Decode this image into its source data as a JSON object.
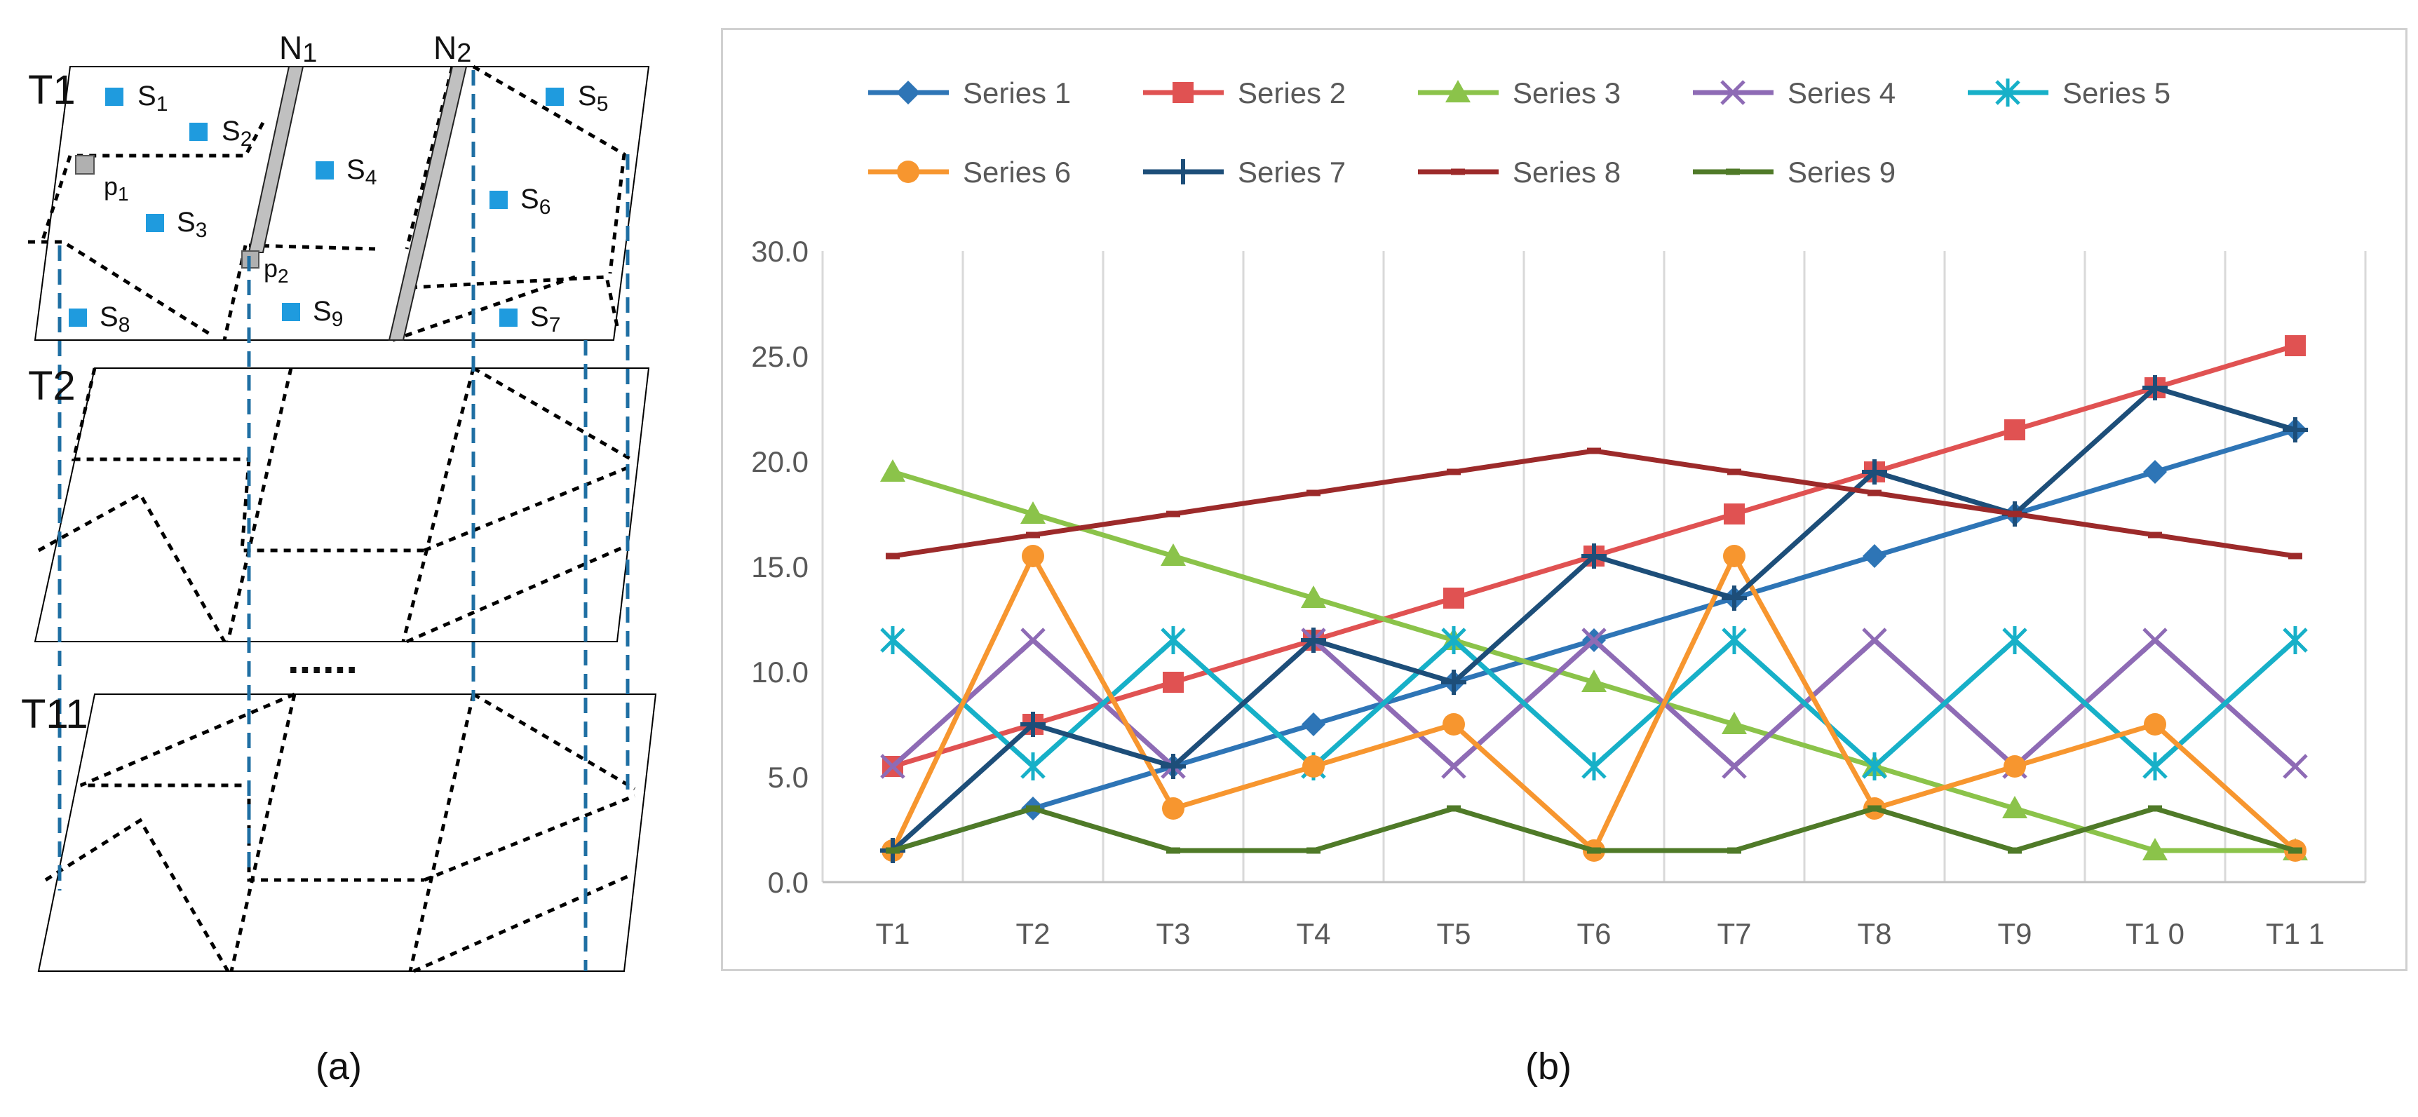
{
  "diagram": {
    "time_labels": [
      "T1",
      "T2",
      "T11"
    ],
    "ellipsis": "......",
    "network_labels": [
      "N",
      "N"
    ],
    "network_subscripts": [
      "1",
      "2"
    ],
    "sensors": [
      {
        "main": "S",
        "sub": "1"
      },
      {
        "main": "S",
        "sub": "2"
      },
      {
        "main": "S",
        "sub": "3"
      },
      {
        "main": "S",
        "sub": "4"
      },
      {
        "main": "S",
        "sub": "5"
      },
      {
        "main": "S",
        "sub": "6"
      },
      {
        "main": "S",
        "sub": "7"
      },
      {
        "main": "S",
        "sub": "8"
      },
      {
        "main": "S",
        "sub": "9"
      }
    ],
    "points": [
      {
        "main": "p",
        "sub": "1"
      },
      {
        "main": "p",
        "sub": "2"
      }
    ],
    "colors": {
      "sensor": "#1f9bde",
      "line": "#000000",
      "dash_blue": "#1f6fa3",
      "bar": "#c0c0c0"
    }
  },
  "captions": {
    "a": "(a)",
    "b": "(b)"
  },
  "chart_data": {
    "type": "line",
    "title": "",
    "xlabel": "",
    "ylabel": "",
    "categories": [
      "T1",
      "T2",
      "T3",
      "T4",
      "T5",
      "T6",
      "T7",
      "T8",
      "T9",
      "T1 0",
      "T1 1"
    ],
    "ylim": [
      0,
      30
    ],
    "yticks": [
      "0.0",
      "5.0",
      "10.0",
      "15.0",
      "20.0",
      "25.0",
      "30.0"
    ],
    "grid": "vertical",
    "legend": "top",
    "series": [
      {
        "name": "Series 1",
        "color": "#2e75b6",
        "marker": "diamond",
        "values": [
          1.5,
          3.5,
          5.5,
          7.5,
          9.5,
          11.5,
          13.5,
          15.5,
          17.5,
          19.5,
          21.5
        ]
      },
      {
        "name": "Series 2",
        "color": "#e05252",
        "marker": "square",
        "values": [
          5.5,
          7.5,
          9.5,
          11.5,
          13.5,
          15.5,
          17.5,
          19.5,
          21.5,
          23.5,
          25.5
        ]
      },
      {
        "name": "Series 3",
        "color": "#8bc34a",
        "marker": "triangle",
        "values": [
          19.5,
          17.5,
          15.5,
          13.5,
          11.5,
          9.5,
          7.5,
          5.5,
          3.5,
          1.5,
          1.5
        ]
      },
      {
        "name": "Series 4",
        "color": "#8e6bb5",
        "marker": "x",
        "values": [
          5.5,
          11.5,
          5.5,
          11.5,
          5.5,
          11.5,
          5.5,
          11.5,
          5.5,
          11.5,
          5.5
        ]
      },
      {
        "name": "Series 5",
        "color": "#17b0c8",
        "marker": "star",
        "values": [
          11.5,
          5.5,
          11.5,
          5.5,
          11.5,
          5.5,
          11.5,
          5.5,
          11.5,
          5.5,
          11.5
        ]
      },
      {
        "name": "Series 6",
        "color": "#f7962f",
        "marker": "circle",
        "values": [
          1.5,
          15.5,
          3.5,
          5.5,
          7.5,
          1.5,
          15.5,
          3.5,
          5.5,
          7.5,
          1.5
        ]
      },
      {
        "name": "Series 7",
        "color": "#1d4e79",
        "marker": "plus",
        "values": [
          1.5,
          7.5,
          5.5,
          11.5,
          9.5,
          15.5,
          13.5,
          19.5,
          17.5,
          23.5,
          21.5
        ]
      },
      {
        "name": "Series 8",
        "color": "#9c2a2a",
        "marker": "dash",
        "values": [
          15.5,
          16.5,
          17.5,
          18.5,
          19.5,
          20.5,
          19.5,
          18.5,
          17.5,
          16.5,
          15.5
        ]
      },
      {
        "name": "Series 9",
        "color": "#4f7a28",
        "marker": "dash",
        "values": [
          1.5,
          3.5,
          1.5,
          1.5,
          3.5,
          1.5,
          1.5,
          3.5,
          1.5,
          3.5,
          1.5
        ]
      }
    ]
  }
}
